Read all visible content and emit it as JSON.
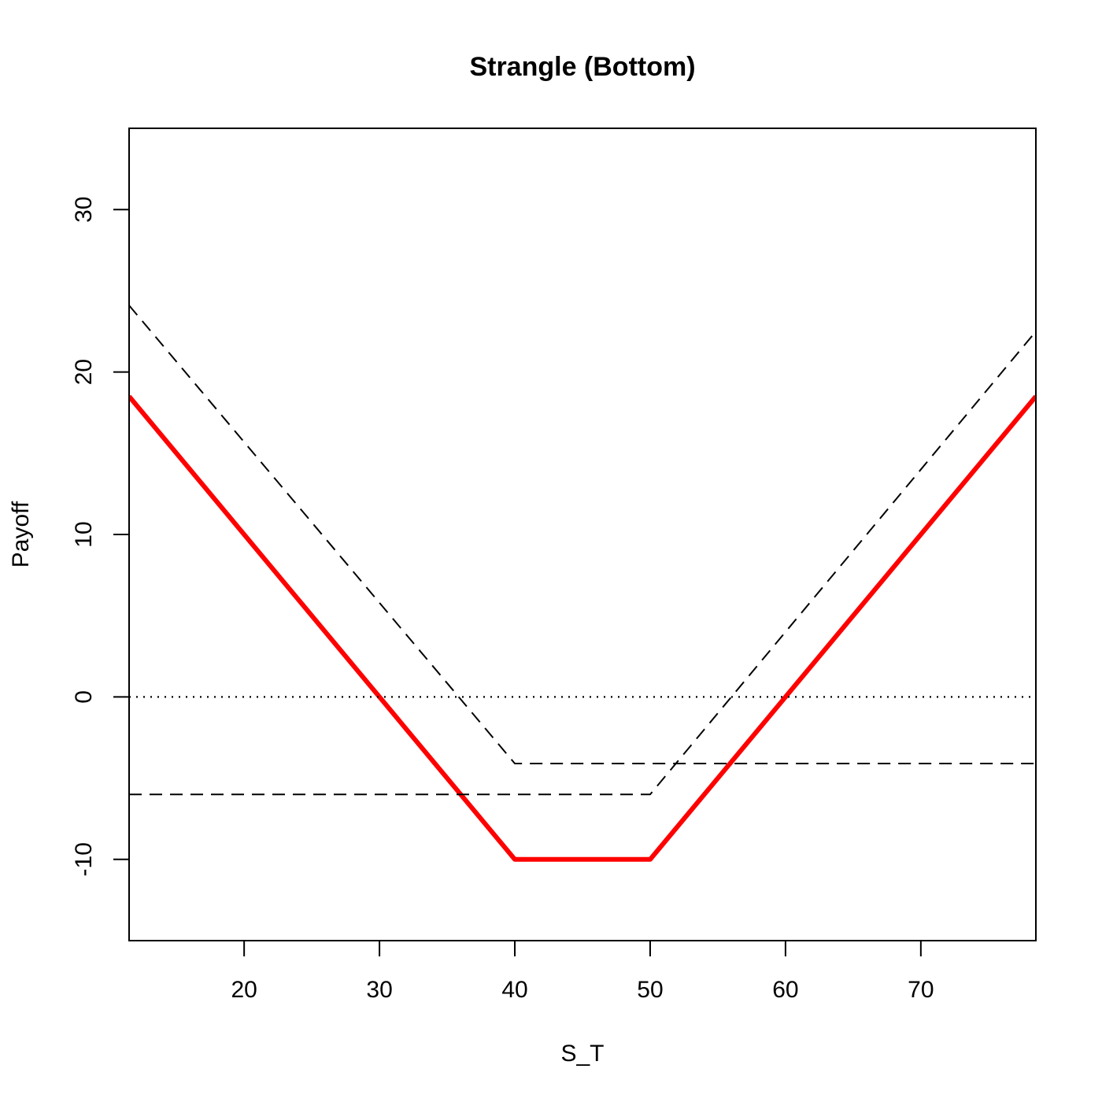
{
  "chart_data": {
    "type": "line",
    "title": "Strangle (Bottom)",
    "xlabel": "S_T",
    "ylabel": "Payoff",
    "xlim": [
      11.5,
      78.5
    ],
    "ylim": [
      -15,
      35
    ],
    "xticks": [
      20,
      30,
      40,
      50,
      60,
      70
    ],
    "yticks": [
      -10,
      0,
      10,
      20,
      30
    ],
    "xtick_labels": [
      "20",
      "30",
      "40",
      "50",
      "60",
      "70"
    ],
    "ytick_labels": [
      "-10",
      "0",
      "10",
      "20",
      "30"
    ],
    "grid": false,
    "series": [
      {
        "style": "solid",
        "color": "#ff0000",
        "x": [
          11.5,
          40,
          50,
          78.5
        ],
        "y": [
          18.5,
          -10,
          -10,
          18.5
        ]
      },
      {
        "style": "dashed",
        "color": "#000000",
        "x": [
          11.5,
          40,
          78.5
        ],
        "y": [
          24.1,
          -4.1,
          -4.1
        ]
      },
      {
        "style": "dashed",
        "color": "#000000",
        "x": [
          11.5,
          50,
          78.5
        ],
        "y": [
          -6,
          -6,
          22.5
        ]
      },
      {
        "style": "dotted",
        "color": "#000000",
        "x": [
          11.5,
          78.5
        ],
        "y": [
          0,
          0
        ]
      }
    ]
  }
}
